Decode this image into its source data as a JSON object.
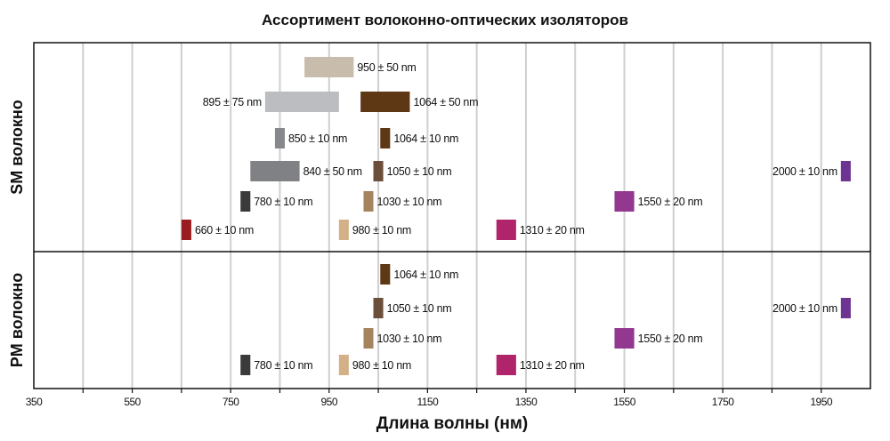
{
  "chart_data": {
    "type": "bar",
    "subtype": "range-bars",
    "title": "Ассортимент волоконно-оптических изоляторов",
    "xlabel": "Длина волны (нм)",
    "xlim": [
      350,
      2050
    ],
    "xticks": [
      350,
      550,
      750,
      950,
      1150,
      1350,
      1550,
      1750,
      1950
    ],
    "grid": true,
    "panels": [
      {
        "name": "SM волокно",
        "name_parts": [
          "SM",
          " волокно"
        ],
        "bars": [
          {
            "center": 950,
            "halfwidth": 50,
            "label": "950 ± 50 nm",
            "row": 0,
            "color": "#c8bcac",
            "label_side": "right"
          },
          {
            "center": 895,
            "halfwidth": 75,
            "label": "895 ± 75 nm",
            "row": 1,
            "color": "#bcbdc0",
            "label_side": "left"
          },
          {
            "center": 1064,
            "halfwidth": 50,
            "label": "1064 ± 50 nm",
            "row": 1,
            "color": "#5e3714",
            "label_side": "right"
          },
          {
            "center": 850,
            "halfwidth": 10,
            "label": "850 ± 10 nm",
            "row": 2,
            "color": "#87888b",
            "label_side": "right"
          },
          {
            "center": 1064,
            "halfwidth": 10,
            "label": "1064 ± 10 nm",
            "row": 2,
            "color": "#5e3714",
            "label_side": "right"
          },
          {
            "center": 840,
            "halfwidth": 50,
            "label": "840 ± 50 nm",
            "row": 3,
            "color": "#808184",
            "label_side": "right"
          },
          {
            "center": 1050,
            "halfwidth": 10,
            "label": "1050 ± 10 nm",
            "row": 3,
            "color": "#6b4f3a",
            "label_side": "right"
          },
          {
            "center": 2000,
            "halfwidth": 10,
            "label": "2000 ± 10 nm",
            "row": 3,
            "color": "#6e3492",
            "label_side": "left"
          },
          {
            "center": 780,
            "halfwidth": 10,
            "label": "780 ± 10 nm",
            "row": 4,
            "color": "#3a3a3a",
            "label_side": "right"
          },
          {
            "center": 1030,
            "halfwidth": 10,
            "label": "1030 ± 10 nm",
            "row": 4,
            "color": "#a6835f",
            "label_side": "right"
          },
          {
            "center": 1550,
            "halfwidth": 20,
            "label": "1550 ± 20 nm",
            "row": 4,
            "color": "#92388f",
            "label_side": "right"
          },
          {
            "center": 660,
            "halfwidth": 10,
            "label": "660 ± 10 nm",
            "row": 5,
            "color": "#9b1c20",
            "label_side": "right"
          },
          {
            "center": 980,
            "halfwidth": 10,
            "label": "980 ± 10 nm",
            "row": 5,
            "color": "#d4b088",
            "label_side": "right"
          },
          {
            "center": 1310,
            "halfwidth": 20,
            "label": "1310 ± 20 nm",
            "row": 5,
            "color": "#b0246b",
            "label_side": "right"
          }
        ]
      },
      {
        "name": "PM волокно",
        "name_parts": [
          "PM",
          " волокно"
        ],
        "bars": [
          {
            "center": 1064,
            "halfwidth": 10,
            "label": "1064 ± 10 nm",
            "row": 0,
            "color": "#5e3714",
            "label_side": "right"
          },
          {
            "center": 1050,
            "halfwidth": 10,
            "label": "1050 ± 10 nm",
            "row": 1,
            "color": "#6b4f3a",
            "label_side": "right"
          },
          {
            "center": 2000,
            "halfwidth": 10,
            "label": "2000 ± 10 nm",
            "row": 1,
            "color": "#6e3492",
            "label_side": "left"
          },
          {
            "center": 1030,
            "halfwidth": 10,
            "label": "1030 ± 10 nm",
            "row": 2,
            "color": "#a6835f",
            "label_side": "right"
          },
          {
            "center": 1550,
            "halfwidth": 20,
            "label": "1550 ± 20 nm",
            "row": 2,
            "color": "#92388f",
            "label_side": "right"
          },
          {
            "center": 780,
            "halfwidth": 10,
            "label": "780 ± 10 nm",
            "row": 3,
            "color": "#3a3a3a",
            "label_side": "right"
          },
          {
            "center": 980,
            "halfwidth": 10,
            "label": "980 ± 10 nm",
            "row": 3,
            "color": "#d4b088",
            "label_side": "right"
          },
          {
            "center": 1310,
            "halfwidth": 20,
            "label": "1310 ± 20 nm",
            "row": 3,
            "color": "#b0246b",
            "label_side": "right"
          }
        ]
      }
    ],
    "panel_label_colors": {
      "prefix": "#1565c0",
      "suffix": "#111111"
    }
  }
}
